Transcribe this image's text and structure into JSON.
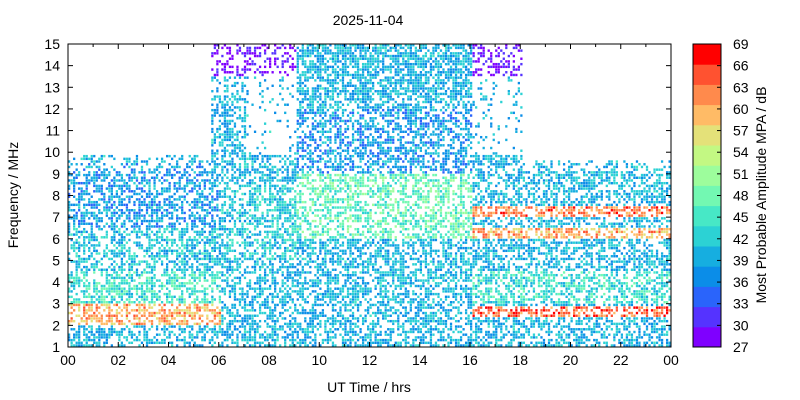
{
  "chart_data": {
    "type": "heatmap",
    "title": "2025-11-04",
    "xlabel": "UT Time / hrs",
    "ylabel": "Frequency / MHz",
    "colorbar_label": "Most Probable Amplitude MPA / dB",
    "xlim": [
      0,
      24
    ],
    "ylim": [
      1,
      15
    ],
    "x_ticks": [
      "00",
      "02",
      "04",
      "06",
      "08",
      "10",
      "12",
      "14",
      "16",
      "18",
      "20",
      "22",
      "00"
    ],
    "x_tick_values": [
      0,
      2,
      4,
      6,
      8,
      10,
      12,
      14,
      16,
      18,
      20,
      22,
      24
    ],
    "y_ticks": [
      "1",
      "2",
      "3",
      "4",
      "5",
      "6",
      "7",
      "8",
      "9",
      "10",
      "11",
      "12",
      "13",
      "14",
      "15"
    ],
    "y_tick_values": [
      1,
      2,
      3,
      4,
      5,
      6,
      7,
      8,
      9,
      10,
      11,
      12,
      13,
      14,
      15
    ],
    "colorbar": {
      "min": 27,
      "max": 69,
      "step": 3,
      "tick_labels": [
        "27",
        "30",
        "33",
        "36",
        "39",
        "42",
        "45",
        "48",
        "51",
        "54",
        "57",
        "60",
        "63",
        "66",
        "69"
      ],
      "colors": [
        "#7f00ff",
        "#5533ff",
        "#2a64fb",
        "#0b8de8",
        "#16aee0",
        "#2cd2d4",
        "#47e8c6",
        "#73f8b2",
        "#9dfd9c",
        "#c3f883",
        "#e4e179",
        "#ffbb66",
        "#ff8a4c",
        "#ff5230",
        "#ff0000"
      ]
    },
    "grid": false,
    "coverage": {
      "upper_frequency_limit_mhz": [
        {
          "from": 0,
          "to": 5.6,
          "mhz": 9.8
        },
        {
          "from": 5.6,
          "to": 7.5,
          "mhz": 15
        },
        {
          "from": 7.5,
          "to": 18,
          "mhz": 15
        },
        {
          "from": 18,
          "to": 24,
          "mhz": 9.6
        }
      ]
    },
    "bands": [
      {
        "from": 0,
        "to": 6,
        "f_lo": 2.0,
        "f_hi": 3.0,
        "db": 60
      },
      {
        "from": 0,
        "to": 6,
        "f_lo": 3.0,
        "f_hi": 4.5,
        "db": 44
      },
      {
        "from": 0,
        "to": 6,
        "f_lo": 4.5,
        "f_hi": 6.5,
        "db": 41
      },
      {
        "from": 0,
        "to": 6,
        "f_lo": 6.5,
        "f_hi": 9.5,
        "db": 38
      },
      {
        "from": 6,
        "to": 9,
        "f_lo": 5.0,
        "f_hi": 8.5,
        "db": 42
      },
      {
        "from": 9,
        "to": 16,
        "f_lo": 6.0,
        "f_hi": 9.0,
        "db": 47
      },
      {
        "from": 9,
        "to": 16,
        "f_lo": 9.0,
        "f_hi": 12.0,
        "db": 38
      },
      {
        "from": 6,
        "to": 9,
        "f_lo": 13.5,
        "f_hi": 15.0,
        "db": 28
      },
      {
        "from": 16,
        "to": 18,
        "f_lo": 13.5,
        "f_hi": 15.0,
        "db": 28
      },
      {
        "from": 16,
        "to": 24,
        "f_lo": 7.0,
        "f_hi": 7.5,
        "db": 63
      },
      {
        "from": 16,
        "to": 24,
        "f_lo": 6.0,
        "f_hi": 6.5,
        "db": 60
      },
      {
        "from": 16,
        "to": 24,
        "f_lo": 2.3,
        "f_hi": 2.8,
        "db": 64
      },
      {
        "from": 16,
        "to": 24,
        "f_lo": 3.0,
        "f_hi": 4.5,
        "db": 44
      }
    ]
  }
}
